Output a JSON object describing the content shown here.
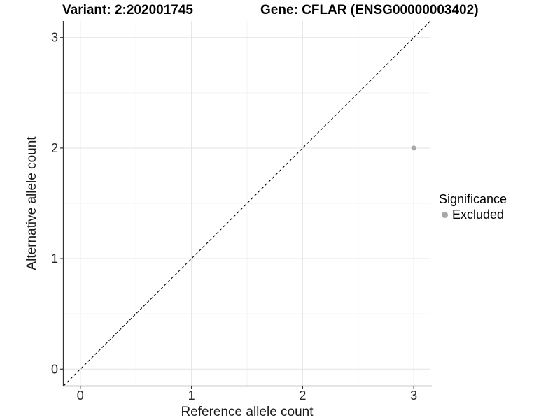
{
  "title": {
    "variant": "Variant: 2:202001745",
    "gene": "Gene: CFLAR (ENSG00000003402)"
  },
  "chart_data": {
    "type": "scatter",
    "xlabel": "Reference allele count",
    "ylabel": "Alternative allele count",
    "xlim": [
      -0.15,
      3.15
    ],
    "ylim": [
      -0.15,
      3.15
    ],
    "x_ticks": [
      0,
      1,
      2,
      3
    ],
    "y_ticks": [
      0,
      1,
      2,
      3
    ],
    "x_minor_ticks": [
      0.5,
      1.5,
      2.5
    ],
    "y_minor_ticks": [
      0.5,
      1.5,
      2.5
    ],
    "grid": true,
    "points": [
      {
        "x": 3,
        "y": 2,
        "series": "Excluded"
      }
    ],
    "reference_line": {
      "slope": 1,
      "intercept": 0,
      "style": "dashed",
      "color": "#000000"
    },
    "legend": {
      "title": "Significance",
      "position": "right",
      "entries": [
        {
          "label": "Excluded",
          "color": "#a8a8a8"
        }
      ]
    },
    "colors": {
      "grid_major": "#e6e6e6",
      "grid_minor": "#f3f3f3",
      "axis": "#333333",
      "tick_label": "#262626"
    }
  }
}
